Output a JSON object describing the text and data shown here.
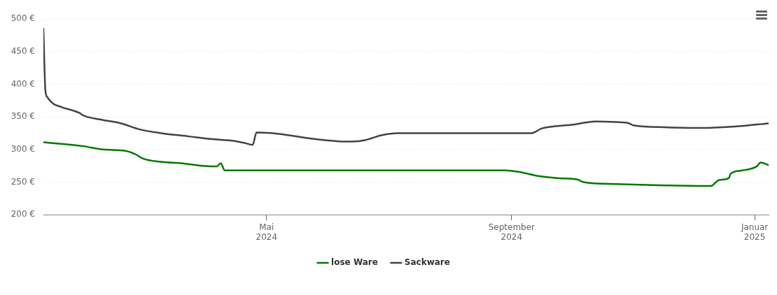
{
  "chart_data": {
    "type": "line",
    "xlim": [
      "2024-01-10",
      "2025-01-08"
    ],
    "xticks": [
      {
        "value": "2024-05-01",
        "label": "Mai\n2024"
      },
      {
        "value": "2024-09-01",
        "label": "September\n2024"
      },
      {
        "value": "2025-01-01",
        "label": "Januar\n2025"
      }
    ],
    "ylim": [
      200,
      500
    ],
    "yticks": [
      {
        "value": 200,
        "label": "200 €"
      },
      {
        "value": 250,
        "label": "250 €"
      },
      {
        "value": 300,
        "label": "300 €"
      },
      {
        "value": 350,
        "label": "350 €"
      },
      {
        "value": 400,
        "label": "400 €"
      },
      {
        "value": 450,
        "label": "450 €"
      },
      {
        "value": 500,
        "label": "500 €"
      }
    ],
    "grid": "y",
    "legend": "bottom",
    "marker": "none",
    "line_style": "solid",
    "series": [
      {
        "name": "lose Ware",
        "color": "#007a00",
        "x": [
          "2024-01-10",
          "2024-01-30",
          "2024-02-09",
          "2024-02-20",
          "2024-02-25",
          "2024-02-29",
          "2024-03-09",
          "2024-03-19",
          "2024-03-30",
          "2024-04-06",
          "2024-04-08",
          "2024-04-10",
          "2024-08-29",
          "2024-09-04",
          "2024-09-15",
          "2024-09-25",
          "2024-10-04",
          "2024-10-07",
          "2024-10-23",
          "2024-11-17",
          "2024-12-10",
          "2024-12-14",
          "2024-12-19",
          "2024-12-20",
          "2024-12-26",
          "2025-01-02",
          "2025-01-04",
          "2025-01-08"
        ],
        "values": [
          311,
          305,
          300,
          298,
          293,
          286,
          281,
          279,
          275,
          274,
          279,
          268,
          268,
          266,
          259,
          256,
          254,
          250,
          247,
          245,
          244,
          253,
          256,
          263,
          268,
          274,
          280,
          276
        ]
      },
      {
        "name": "Sackware",
        "color": "#434343",
        "x": [
          "2024-01-10",
          "2024-01-11",
          "2024-01-12",
          "2024-01-13",
          "2024-01-15",
          "2024-01-19",
          "2024-01-28",
          "2024-01-30",
          "2024-02-09",
          "2024-02-18",
          "2024-02-27",
          "2024-03-09",
          "2024-03-23",
          "2024-04-03",
          "2024-04-15",
          "2024-04-20",
          "2024-04-24",
          "2024-04-26",
          "2024-05-07",
          "2024-05-25",
          "2024-06-11",
          "2024-06-19",
          "2024-06-28",
          "2024-07-06",
          "2024-09-11",
          "2024-09-16",
          "2024-10-02",
          "2024-10-13",
          "2024-10-23",
          "2024-10-30",
          "2024-11-01",
          "2024-11-17",
          "2024-12-05",
          "2024-12-22",
          "2025-01-08"
        ],
        "values": [
          485,
          390,
          380,
          376,
          370,
          365,
          356,
          352,
          345,
          340,
          331,
          325,
          320,
          316,
          313,
          310,
          307,
          326,
          324,
          316,
          312,
          314,
          322,
          325,
          325,
          332,
          338,
          343,
          342,
          340,
          337,
          334,
          333,
          335,
          340
        ]
      }
    ]
  }
}
